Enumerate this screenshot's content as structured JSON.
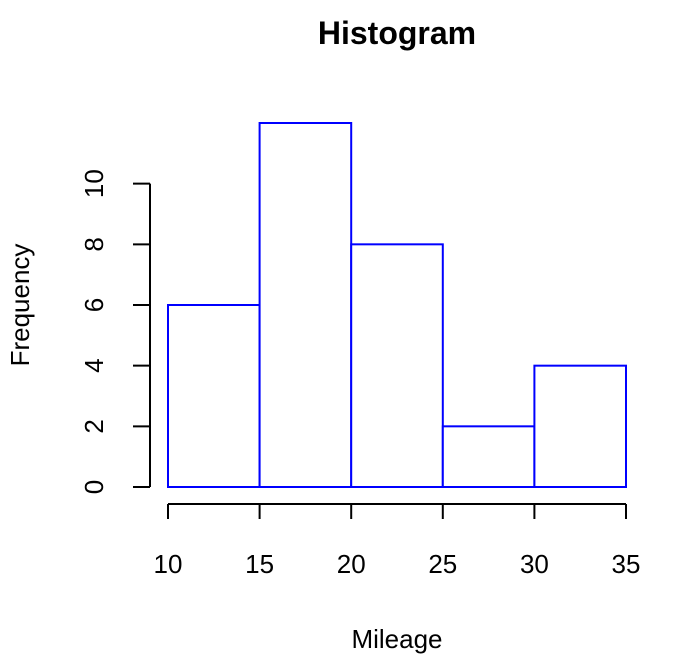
{
  "chart_data": {
    "type": "bar",
    "title": "Histogram",
    "xlabel": "Mileage",
    "ylabel": "Frequency",
    "bins": [
      {
        "from": 10,
        "to": 15,
        "count": 6
      },
      {
        "from": 15,
        "to": 20,
        "count": 12
      },
      {
        "from": 20,
        "to": 25,
        "count": 8
      },
      {
        "from": 25,
        "to": 30,
        "count": 2
      },
      {
        "from": 30,
        "to": 35,
        "count": 4
      }
    ],
    "xlim": [
      10,
      35
    ],
    "ylim": [
      0,
      12
    ],
    "x_ticks": [
      10,
      15,
      20,
      25,
      30,
      35
    ],
    "y_ticks": [
      0,
      2,
      4,
      6,
      8,
      10
    ],
    "grid": false,
    "colors": {
      "bar_border": "#0000ff",
      "bar_fill": "#ffffff"
    }
  }
}
